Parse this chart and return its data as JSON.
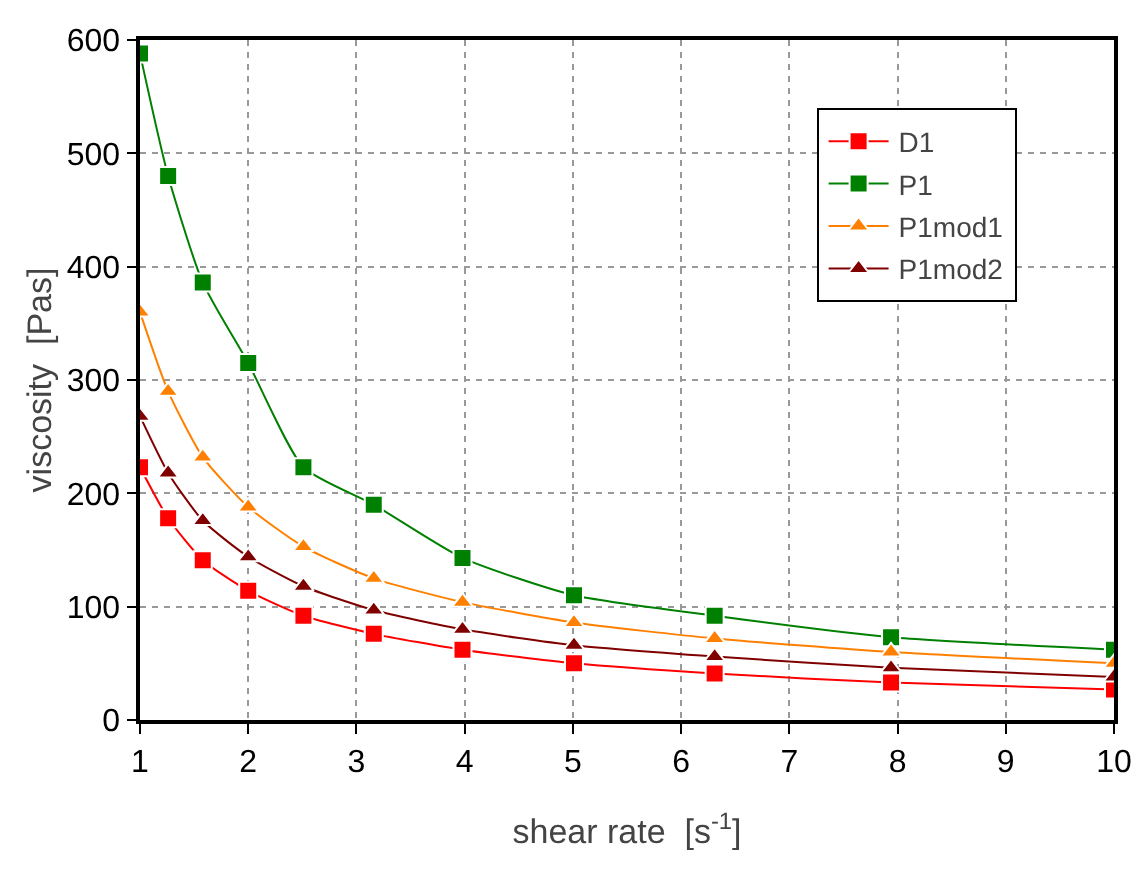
{
  "chart_data": {
    "type": "line",
    "xlabel": "shear rate  [s$^{-1}$]",
    "ylabel": "viscosity  [Pas]",
    "x": [
      1,
      1.26,
      1.58,
      2,
      2.51,
      3.16,
      3.98,
      5.01,
      6.31,
      7.94,
      10
    ],
    "series": [
      {
        "name": "D1",
        "color": "#ff0000",
        "marker": "square",
        "values": [
          223,
          178,
          141,
          114,
          92,
          76,
          62,
          50,
          41,
          33,
          27
        ]
      },
      {
        "name": "P1",
        "color": "#008000",
        "marker": "square",
        "values": [
          588,
          480,
          386,
          315,
          223,
          190,
          143,
          110,
          92,
          73,
          62
        ]
      },
      {
        "name": "P1mod1",
        "color": "#ff8000",
        "marker": "triangle",
        "values": [
          360,
          290,
          232,
          188,
          153,
          125,
          104,
          86,
          72,
          60,
          50
        ]
      },
      {
        "name": "P1mod2",
        "color": "#800000",
        "marker": "triangle",
        "values": [
          268,
          218,
          176,
          144,
          118,
          97,
          80,
          66,
          56,
          46,
          38
        ]
      }
    ],
    "xlim": [
      1,
      10
    ],
    "xticks": [
      1,
      2,
      3,
      4,
      5,
      6,
      7,
      8,
      9,
      10
    ],
    "ylim": [
      0,
      600
    ],
    "yticks": [
      0,
      100,
      200,
      300,
      400,
      500,
      600
    ],
    "grid": true,
    "legend": "top right",
    "line_style": "solid"
  }
}
